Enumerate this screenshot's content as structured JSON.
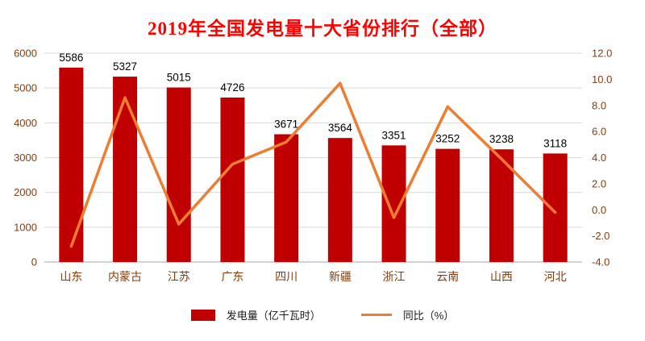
{
  "title": "2019年全国发电量十大省份排行（全部）",
  "colors": {
    "title": "#FF0000",
    "bar": "#C00000",
    "line": "#ED7D31",
    "axis_text": "#843C0C",
    "grid": "#D9D9D9",
    "axis_line": "#A6A6A6",
    "label_text": "#000000",
    "background": "#FFFFFF"
  },
  "legend": [
    {
      "type": "bar",
      "label": "发电量（亿千瓦时）"
    },
    {
      "type": "line",
      "label": "同比（%）"
    }
  ],
  "chart_data": {
    "type": "bar",
    "subtype": "bar+line combo, dual axis",
    "title": "2019年全国发电量十大省份排行（全部）",
    "categories": [
      "山东",
      "内蒙古",
      "江苏",
      "广东",
      "四川",
      "新疆",
      "浙江",
      "云南",
      "山西",
      "河北"
    ],
    "series": [
      {
        "name": "发电量（亿千瓦时）",
        "type": "bar",
        "axis": "left",
        "values": [
          5586,
          5327,
          5015,
          4726,
          3671,
          3564,
          3351,
          3252,
          3238,
          3118
        ]
      },
      {
        "name": "同比（%）",
        "type": "line",
        "axis": "right",
        "values": [
          -2.8,
          8.6,
          -1.1,
          3.5,
          5.2,
          9.7,
          -0.6,
          7.9,
          3.9,
          -0.2
        ]
      }
    ],
    "data_labels": [
      "5586",
      "5327",
      "5015",
      "4726",
      "3671",
      "3564",
      "3351",
      "3252",
      "3238",
      "3118"
    ],
    "left_axis": {
      "min": 0,
      "max": 6000,
      "step": 1000,
      "labels": [
        "0",
        "1000",
        "2000",
        "3000",
        "4000",
        "5000",
        "6000"
      ]
    },
    "right_axis": {
      "min": -4,
      "max": 12,
      "step": 2,
      "labels": [
        "-4.0",
        "-2.0",
        "0.0",
        "2.0",
        "4.0",
        "6.0",
        "8.0",
        "10.0",
        "12.0"
      ]
    },
    "grid": true,
    "legend_position": "bottom"
  }
}
